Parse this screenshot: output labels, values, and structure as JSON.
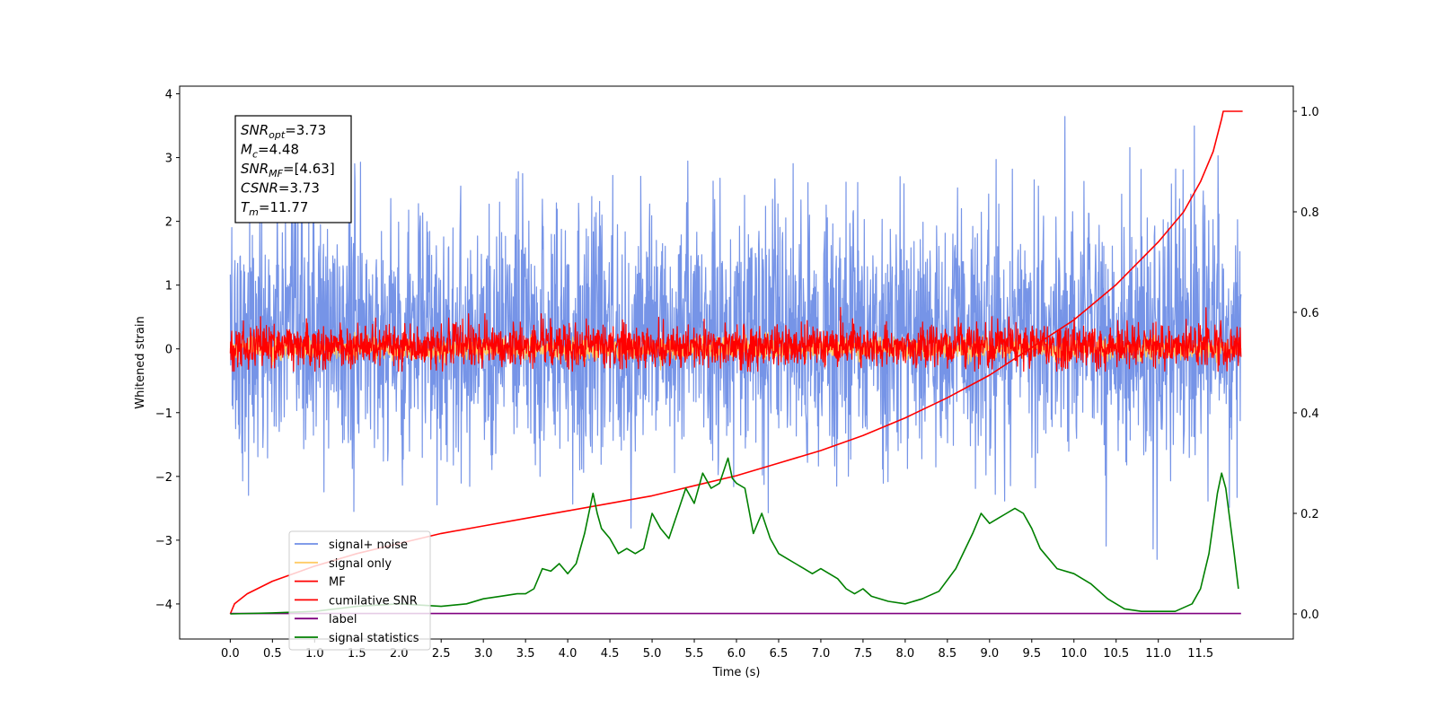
{
  "chart_data": {
    "type": "line",
    "xlabel": "Time (s)",
    "ylabel": "Whitened strain",
    "xlim": [
      -0.6,
      12.6
    ],
    "ylim": [
      -4.55,
      4.12
    ],
    "y2lim": [
      -0.05,
      1.05
    ],
    "x_ticks": [
      0.0,
      0.5,
      1.0,
      1.5,
      2.0,
      2.5,
      3.0,
      3.5,
      4.0,
      4.5,
      5.0,
      5.5,
      6.0,
      6.5,
      7.0,
      7.5,
      8.0,
      8.5,
      9.0,
      9.5,
      10.0,
      10.5,
      11.0,
      11.5
    ],
    "x_tick_labels": [
      "0.0",
      "0.5",
      "1.0",
      "1.5",
      "2.0",
      "2.5",
      "3.0",
      "3.5",
      "4.0",
      "4.5",
      "5.0",
      "5.5",
      "6.0",
      "6.5",
      "7.0",
      "7.5",
      "8.0",
      "8.5",
      "9.0",
      "9.5",
      "10.0",
      "10.5",
      "11.0",
      "11.5"
    ],
    "y_ticks": [
      4,
      3,
      2,
      1,
      0,
      -1,
      -2,
      -3,
      -4
    ],
    "y_tick_labels": [
      "4",
      "3",
      "2",
      "1",
      "0",
      "−1",
      "−2",
      "−3",
      "−4"
    ],
    "y2_ticks": [
      1.0,
      0.8,
      0.6,
      0.4,
      0.2,
      0.0
    ],
    "y2_tick_labels": [
      "1.0",
      "0.8",
      "0.6",
      "0.4",
      "0.2",
      "0.0"
    ],
    "grid": false,
    "legend_position": "lower-left",
    "annotation": {
      "lines": [
        {
          "sym": "SNR",
          "sub": "opt",
          "rest": "=3.73"
        },
        {
          "sym": "M",
          "sub": "c",
          "rest": "=4.48"
        },
        {
          "sym": "SNR",
          "sub": "MF",
          "rest": "=[4.63]"
        },
        {
          "sym": "CSNR",
          "sub": "",
          "rest": "=3.73"
        },
        {
          "sym": "T",
          "sub": "m",
          "rest": "=11.77"
        }
      ]
    },
    "series": [
      {
        "name": "signal+ noise",
        "axis": "left",
        "color": "#6f8ee6",
        "style": "noise",
        "t_start": 0.0,
        "t_end": 11.98,
        "mean": 0.2,
        "std": 1.0,
        "range": [
          -3.3,
          3.75
        ]
      },
      {
        "name": "signal only",
        "axis": "left",
        "color": "#ffcc66",
        "style": "noise",
        "t_start": 0.0,
        "t_end": 11.98,
        "mean": 0.0,
        "std": 0.08
      },
      {
        "name": "MF",
        "axis": "left",
        "color": "#ff0000",
        "style": "noise",
        "t_start": 0.0,
        "t_end": 11.98,
        "mean": 0.05,
        "std": 0.17,
        "range": [
          -0.35,
          1.0
        ]
      },
      {
        "name": "cumilative SNR",
        "axis": "right",
        "color": "#ff0000",
        "x": [
          0.0,
          0.05,
          0.2,
          0.5,
          1.0,
          1.5,
          2.0,
          2.5,
          3.0,
          3.5,
          4.0,
          4.5,
          5.0,
          5.5,
          6.0,
          6.5,
          7.0,
          7.5,
          8.0,
          8.5,
          9.0,
          9.5,
          10.0,
          10.5,
          11.0,
          11.3,
          11.5,
          11.65,
          11.75,
          11.77,
          12.0
        ],
        "y": [
          0.0,
          0.02,
          0.04,
          0.065,
          0.095,
          0.12,
          0.14,
          0.16,
          0.175,
          0.19,
          0.205,
          0.22,
          0.235,
          0.255,
          0.275,
          0.3,
          0.325,
          0.355,
          0.39,
          0.43,
          0.475,
          0.53,
          0.585,
          0.655,
          0.74,
          0.8,
          0.86,
          0.92,
          0.985,
          1.0,
          1.0
        ]
      },
      {
        "name": "label",
        "axis": "left",
        "color": "#800080",
        "x": [
          0.0,
          11.98
        ],
        "y": [
          -4.15,
          -4.15
        ]
      },
      {
        "name": "signal statistics",
        "axis": "right",
        "color": "#008000",
        "x": [
          0.0,
          0.5,
          1.0,
          1.5,
          2.0,
          2.5,
          2.8,
          3.0,
          3.2,
          3.4,
          3.5,
          3.6,
          3.7,
          3.8,
          3.9,
          4.0,
          4.1,
          4.2,
          4.3,
          4.35,
          4.4,
          4.5,
          4.6,
          4.7,
          4.8,
          4.9,
          5.0,
          5.1,
          5.2,
          5.3,
          5.4,
          5.5,
          5.6,
          5.7,
          5.8,
          5.9,
          5.95,
          6.0,
          6.1,
          6.2,
          6.3,
          6.4,
          6.5,
          6.6,
          6.7,
          6.8,
          6.9,
          7.0,
          7.1,
          7.2,
          7.3,
          7.4,
          7.5,
          7.6,
          7.8,
          8.0,
          8.2,
          8.4,
          8.6,
          8.8,
          8.9,
          9.0,
          9.1,
          9.2,
          9.3,
          9.4,
          9.5,
          9.6,
          9.8,
          10.0,
          10.2,
          10.4,
          10.6,
          10.8,
          11.0,
          11.2,
          11.4,
          11.5,
          11.6,
          11.7,
          11.75,
          11.8,
          11.9,
          11.95
        ],
        "y": [
          0.0,
          0.002,
          0.005,
          0.015,
          0.02,
          0.015,
          0.02,
          0.03,
          0.035,
          0.04,
          0.04,
          0.05,
          0.09,
          0.085,
          0.1,
          0.08,
          0.1,
          0.16,
          0.24,
          0.2,
          0.17,
          0.15,
          0.12,
          0.13,
          0.12,
          0.13,
          0.2,
          0.17,
          0.15,
          0.2,
          0.25,
          0.22,
          0.28,
          0.25,
          0.26,
          0.31,
          0.27,
          0.26,
          0.25,
          0.16,
          0.2,
          0.15,
          0.12,
          0.11,
          0.1,
          0.09,
          0.08,
          0.09,
          0.08,
          0.07,
          0.05,
          0.04,
          0.05,
          0.035,
          0.025,
          0.02,
          0.03,
          0.045,
          0.09,
          0.16,
          0.2,
          0.18,
          0.19,
          0.2,
          0.21,
          0.2,
          0.17,
          0.13,
          0.09,
          0.08,
          0.06,
          0.03,
          0.01,
          0.005,
          0.005,
          0.005,
          0.02,
          0.05,
          0.12,
          0.24,
          0.28,
          0.25,
          0.12,
          0.05
        ]
      }
    ]
  }
}
